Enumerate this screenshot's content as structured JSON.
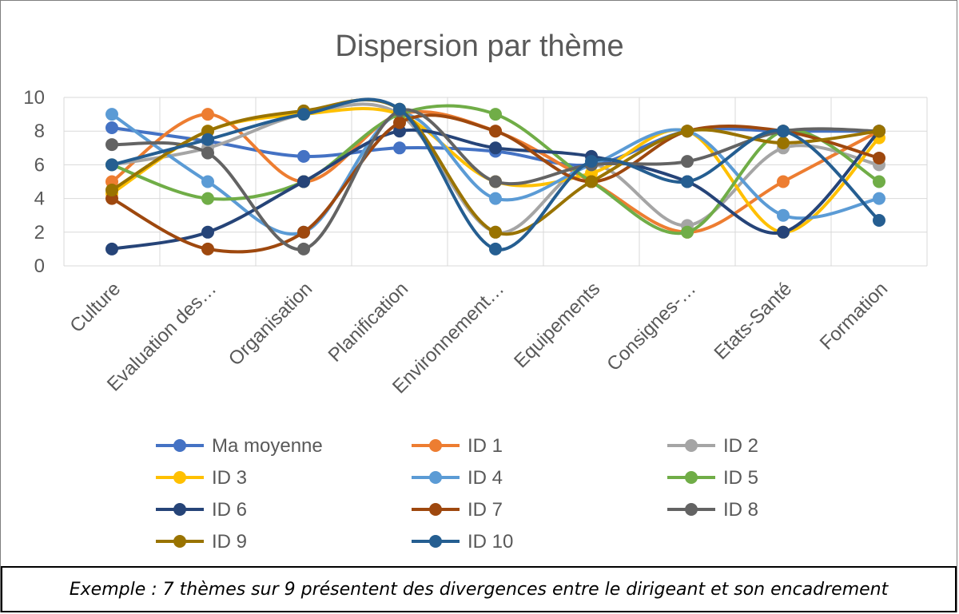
{
  "chart_data": {
    "type": "line",
    "title": "Dispersion par thème",
    "xlabel": "",
    "ylabel": "",
    "ylim": [
      0,
      10
    ],
    "yticks": [
      "0",
      "2",
      "4",
      "6",
      "8",
      "10"
    ],
    "grid": true,
    "smooth": true,
    "legend_position": "bottom",
    "categories": [
      "Culture",
      "Evaluation des…",
      "Organisation",
      "Planification",
      "Environnement…",
      "Equipements",
      "Consignes-…",
      "Etats-Santé",
      "Formation"
    ],
    "series": [
      {
        "name": "Ma moyenne",
        "color": "#4472C4",
        "values": [
          8.2,
          7.4,
          6.5,
          7.0,
          6.8,
          6.0,
          8.0,
          8.0,
          8.0
        ]
      },
      {
        "name": "ID 1",
        "color": "#ED7D31",
        "values": [
          5.0,
          9.0,
          5.0,
          9.0,
          8.0,
          5.0,
          2.0,
          5.0,
          8.0
        ]
      },
      {
        "name": "ID 2",
        "color": "#A5A5A5",
        "values": [
          6.0,
          7.0,
          9.0,
          9.0,
          2.0,
          6.0,
          2.4,
          7.0,
          6.0
        ]
      },
      {
        "name": "ID 3",
        "color": "#FFC000",
        "values": [
          4.3,
          8.0,
          9.0,
          9.0,
          5.0,
          5.5,
          8.0,
          2.0,
          7.6
        ]
      },
      {
        "name": "ID 4",
        "color": "#5B9BD5",
        "values": [
          9.0,
          5.0,
          2.0,
          9.0,
          4.0,
          6.0,
          8.0,
          3.0,
          4.0
        ]
      },
      {
        "name": "ID 5",
        "color": "#70AD47",
        "values": [
          6.0,
          4.0,
          5.0,
          9.0,
          9.0,
          5.0,
          2.0,
          8.0,
          5.0
        ]
      },
      {
        "name": "ID 6",
        "color": "#264478",
        "values": [
          1.0,
          2.0,
          5.0,
          8.0,
          7.0,
          6.5,
          5.0,
          2.0,
          8.0
        ]
      },
      {
        "name": "ID 7",
        "color": "#9E480E",
        "values": [
          4.0,
          1.0,
          2.0,
          8.5,
          8.0,
          5.0,
          8.0,
          8.0,
          6.4
        ]
      },
      {
        "name": "ID 8",
        "color": "#636363",
        "values": [
          7.2,
          6.7,
          1.0,
          9.2,
          5.0,
          6.0,
          6.2,
          8.0,
          8.0
        ]
      },
      {
        "name": "ID 9",
        "color": "#997300",
        "values": [
          4.5,
          8.0,
          9.2,
          9.3,
          2.0,
          5.0,
          8.0,
          7.3,
          8.0
        ]
      },
      {
        "name": "ID 10",
        "color": "#255E91",
        "values": [
          6.0,
          7.5,
          9.0,
          9.3,
          1.0,
          6.2,
          5.0,
          8.0,
          2.7
        ]
      }
    ]
  },
  "caption": "Exemple : 7 thèmes sur 9 présentent des divergences entre le dirigeant et son encadrement"
}
